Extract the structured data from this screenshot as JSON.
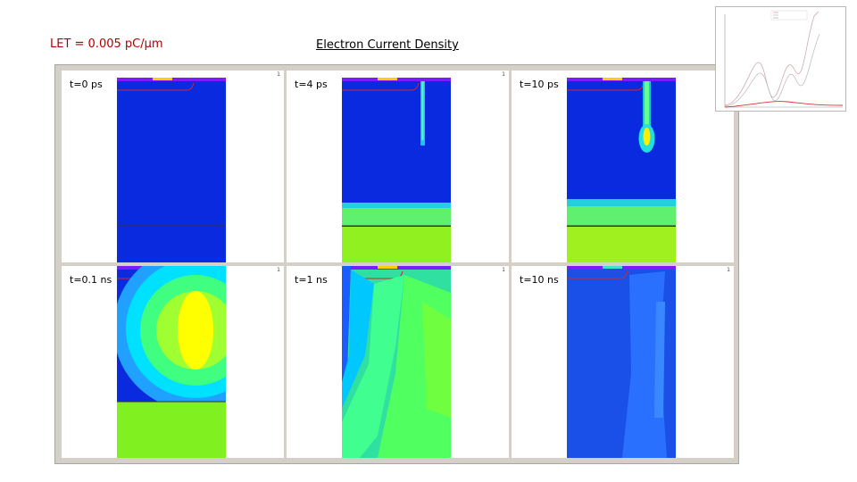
{
  "header": {
    "let_label": "LET = 0.005 pC/µm",
    "title": "Electron Current Density"
  },
  "panels": [
    {
      "label": "t=0 ps",
      "corner": "1"
    },
    {
      "label": "t=4 ps",
      "corner": "1"
    },
    {
      "label": "t=10 ps",
      "corner": "1"
    },
    {
      "label": "t=0.1 ns",
      "corner": "1"
    },
    {
      "label": "t=1 ns",
      "corner": "1"
    },
    {
      "label": "t=10 ns",
      "corner": "1"
    }
  ],
  "colors": {
    "deep_blue": "#0a2ae0",
    "blue": "#1a5cff",
    "cyan": "#00e0ff",
    "green": "#40ff60",
    "yellow_green": "#a0ff20",
    "yellow": "#ffff00",
    "frame": "#d4d0c8"
  }
}
